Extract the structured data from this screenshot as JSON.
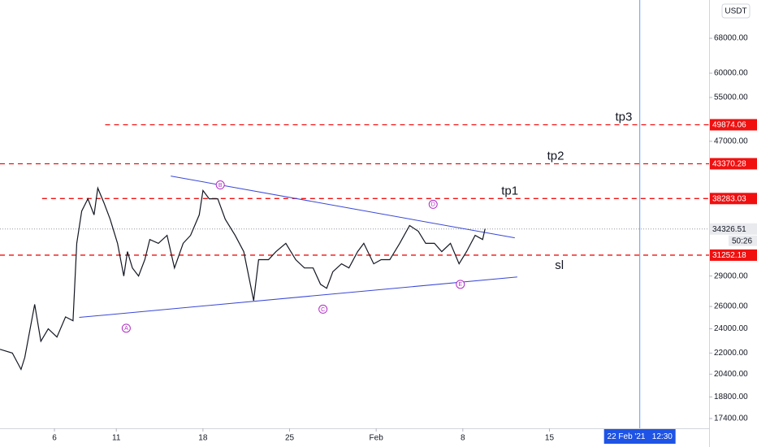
{
  "chart_data": {
    "type": "line",
    "log_y": true,
    "color": "#131722",
    "currency_button": "USDT",
    "xlim": [
      1.6,
      58.9
    ],
    "ylim": [
      16800,
      78000
    ],
    "xticks": [
      6,
      11,
      18,
      25,
      {
        "value": 32,
        "label": "Feb"
      },
      {
        "value": 39,
        "label": "8"
      },
      {
        "value": 46,
        "label": "15"
      }
    ],
    "yticks": [
      {
        "value": 68000,
        "label": "68000.00"
      },
      {
        "value": 60000,
        "label": "60000.00"
      },
      {
        "value": 55000,
        "label": "55000.00"
      },
      {
        "value": 47000,
        "label": "47000.00"
      },
      {
        "value": 29000,
        "label": "29000.00"
      },
      {
        "value": 26000,
        "label": "26000.00"
      },
      {
        "value": 24000,
        "label": "24000.00"
      },
      {
        "value": 22000,
        "label": "22000.00"
      },
      {
        "value": 20400,
        "label": "20400.00"
      },
      {
        "value": 18800,
        "label": "18800.00"
      },
      {
        "value": 17400,
        "label": "17400.00"
      }
    ],
    "x": [
      1.6,
      2.6,
      3.3,
      3.6,
      4.4,
      4.9,
      5.5,
      6.2,
      6.9,
      7.5,
      7.8,
      8.2,
      8.7,
      9.2,
      9.5,
      10.0,
      10.5,
      11.1,
      11.6,
      11.9,
      12.3,
      12.8,
      13.3,
      13.7,
      14.4,
      15.1,
      15.7,
      16.4,
      17.0,
      17.7,
      18.0,
      18.5,
      19.2,
      19.8,
      20.6,
      21.3,
      22.1,
      22.5,
      23.3,
      23.9,
      24.7,
      25.5,
      26.2,
      26.9,
      27.5,
      28.0,
      28.5,
      29.2,
      29.8,
      30.5,
      31.0,
      31.8,
      32.4,
      33.1,
      33.9,
      34.7,
      35.4,
      36.0,
      36.7,
      37.3,
      38.0,
      38.7,
      39.3,
      40.0,
      40.6,
      40.8
    ],
    "values": [
      22300,
      22000,
      20750,
      21650,
      26200,
      22950,
      24000,
      23300,
      25050,
      24700,
      32600,
      36600,
      38250,
      36100,
      39750,
      37700,
      35550,
      32600,
      29000,
      31650,
      29850,
      29000,
      30750,
      33050,
      32600,
      33550,
      29850,
      32600,
      33550,
      36100,
      39400,
      38250,
      38250,
      35550,
      33550,
      31650,
      26550,
      30750,
      30750,
      31650,
      32600,
      30750,
      29850,
      29850,
      28150,
      27750,
      29450,
      30300,
      29850,
      31650,
      32600,
      30300,
      30750,
      30750,
      32600,
      34750,
      34050,
      32600,
      32600,
      31650,
      32600,
      30300,
      31650,
      33550,
      33050,
      34350
    ],
    "trendlines": [
      {
        "x": [
          15.4,
          43.2
        ],
        "values": [
          41500,
          33250
        ]
      },
      {
        "x": [
          8.0,
          43.4
        ],
        "values": [
          25000,
          28900
        ]
      }
    ],
    "annotations": [
      {
        "text": "A",
        "x": 11.8,
        "y": 24050
      },
      {
        "text": "B",
        "x": 19.4,
        "y": 40200
      },
      {
        "text": "C",
        "x": 27.7,
        "y": 25750
      },
      {
        "text": "D",
        "x": 36.6,
        "y": 37500
      },
      {
        "text": "E",
        "x": 38.8,
        "y": 28150
      }
    ],
    "levels": [
      {
        "name": "tp3",
        "value": 49874.06,
        "label": "49874.06",
        "start": 10.1,
        "x": 52.0,
        "side": "above"
      },
      {
        "name": "tp2",
        "value": 43370.28,
        "label": "43370.28",
        "start": 1.6,
        "x": 46.5,
        "side": "above"
      },
      {
        "name": "tp1",
        "value": 38283.03,
        "label": "38283.03",
        "start": 5.0,
        "x": 42.8,
        "side": "above"
      },
      {
        "name": "sl",
        "value": 31252.18,
        "label": "31252.18",
        "start": 1.6,
        "x": 46.8,
        "side": "below"
      }
    ],
    "last_price": {
      "value": 34326.51,
      "label": "34326.51",
      "countdown": "50:26"
    },
    "crosshair": {
      "x": 53.3,
      "label": "22 Feb '21   12:30"
    }
  }
}
